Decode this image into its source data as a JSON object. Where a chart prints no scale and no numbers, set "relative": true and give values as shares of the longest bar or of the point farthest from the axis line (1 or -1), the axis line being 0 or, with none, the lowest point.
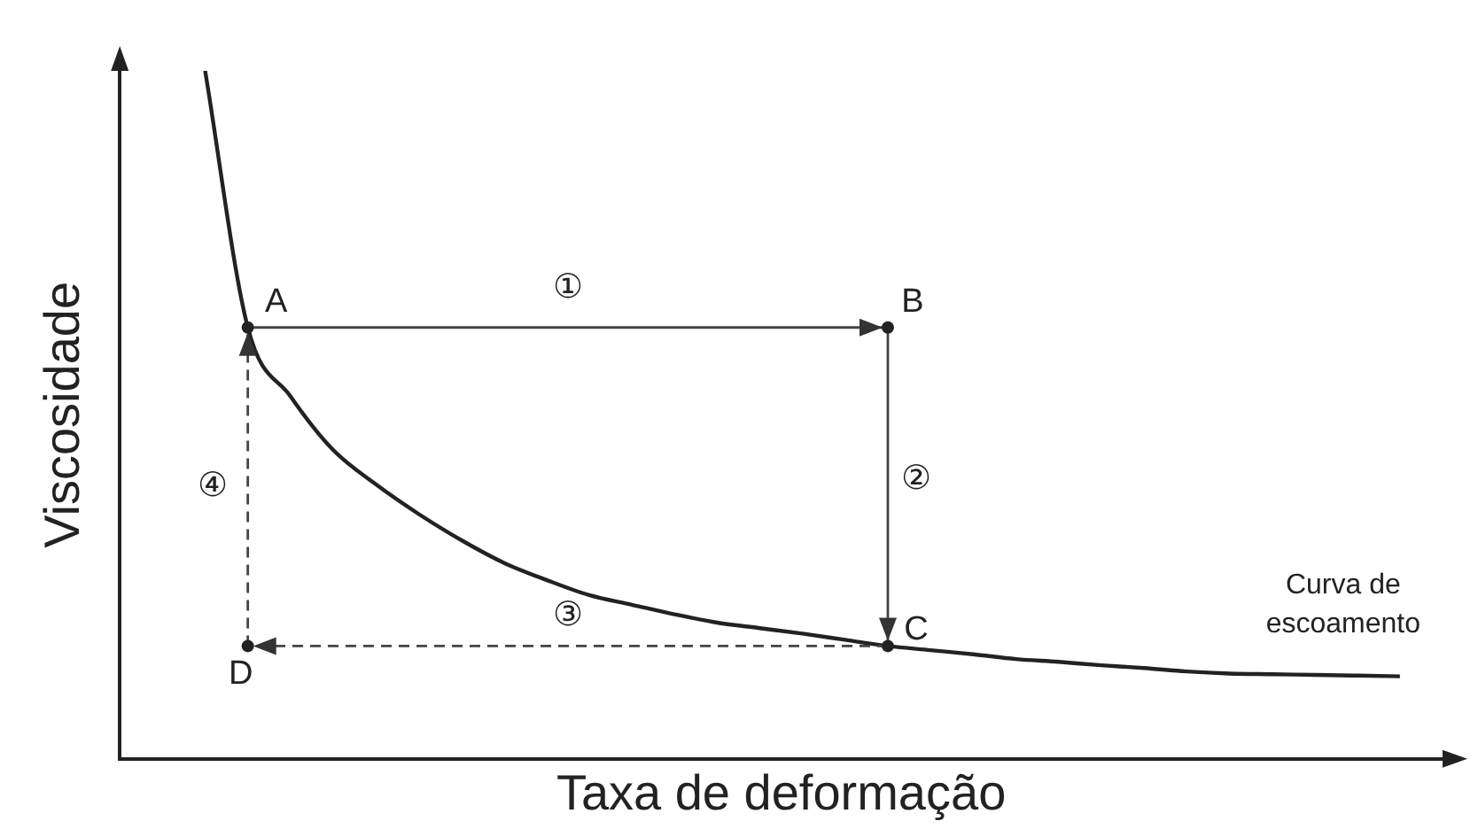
{
  "chart_data": {
    "type": "line",
    "relative": true,
    "xlabel": "Taxa de deformação",
    "ylabel": "Viscosidade",
    "categories": [
      null,
      null,
      null,
      null,
      null,
      null,
      null,
      null,
      null,
      null,
      null,
      null,
      null,
      null,
      null,
      null,
      null,
      null,
      null,
      null,
      null,
      null,
      null,
      null,
      null,
      null,
      null,
      null,
      null,
      null,
      null,
      null
    ],
    "series": [
      {
        "color": "#222222",
        "values": [
          null,
          null,
          1.0,
          0.627,
          0.527,
          0.449,
          0.399,
          0.356,
          0.318,
          0.285,
          0.26,
          0.238,
          0.224,
          0.21,
          0.198,
          0.19,
          0.182,
          0.173,
          0.164,
          0.158,
          0.152,
          0.145,
          0.141,
          0.136,
          0.132,
          0.127,
          0.124,
          0.123,
          0.122,
          0.121,
          0.12,
          null
        ]
      }
    ],
    "annotations": [
      "A",
      "B",
      "C",
      "D",
      "①",
      "②",
      "③",
      "④",
      "Curva de\nescoamento"
    ]
  }
}
